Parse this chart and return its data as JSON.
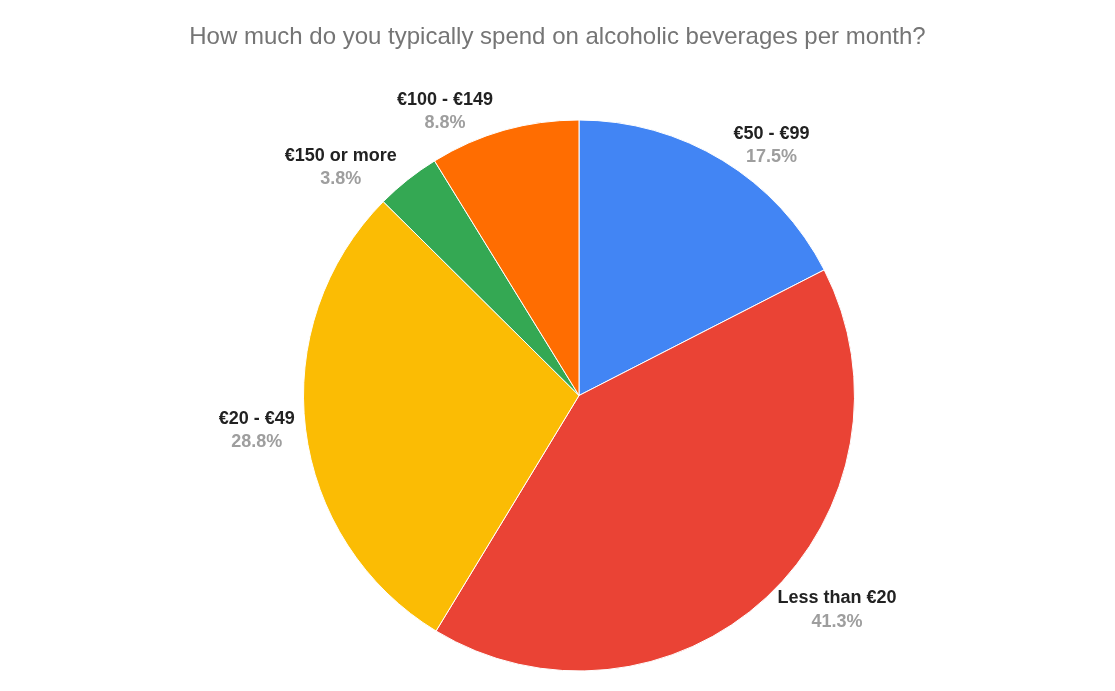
{
  "chart_data": {
    "type": "pie",
    "title": "How much do you typically spend on alcoholic beverages per month?",
    "categories": [
      "€50 - €99",
      "Less than €20",
      "€20 - €49",
      "€150 or more",
      "€100 - €149"
    ],
    "values": [
      17.5,
      41.3,
      28.8,
      3.8,
      8.8
    ],
    "value_labels": [
      "17.5%",
      "41.3%",
      "28.8%",
      "3.8%",
      "8.8%"
    ],
    "colors": [
      "#4285f4",
      "#ea4335",
      "#fbbc04",
      "#34a853",
      "#ff6d01"
    ],
    "legend": false
  }
}
